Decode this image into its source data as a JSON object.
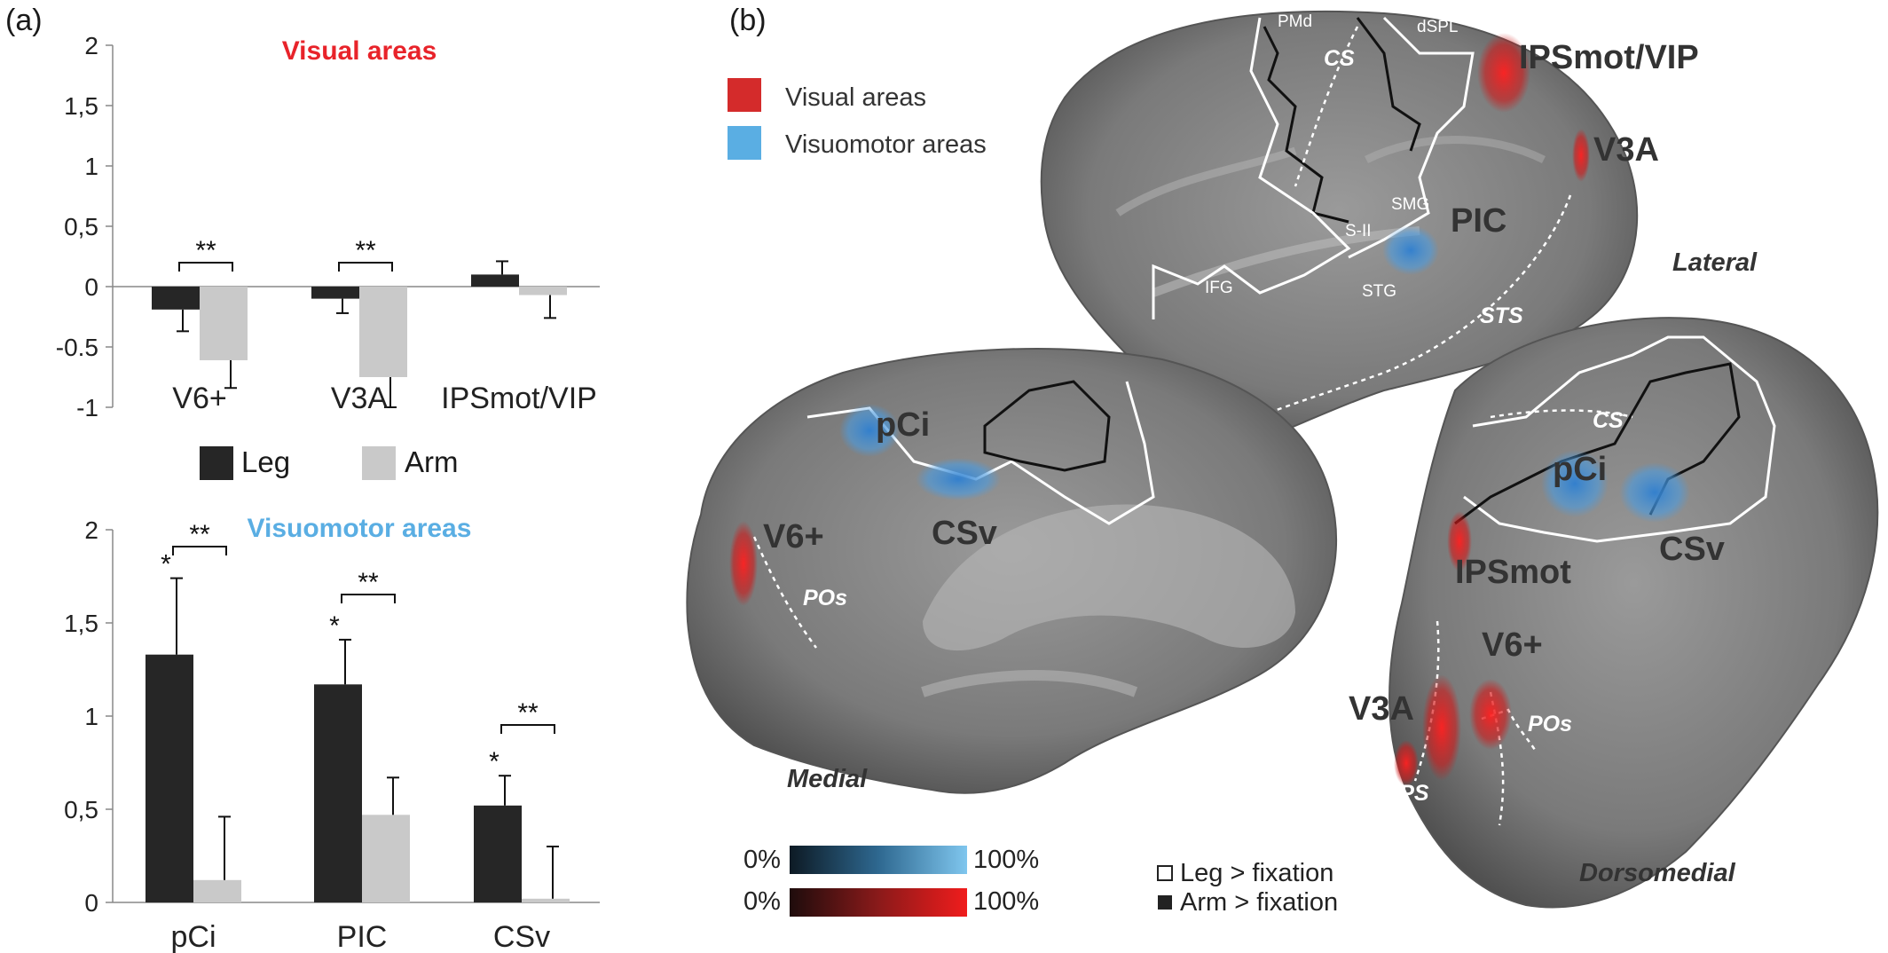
{
  "panel_a": {
    "label": "(a)",
    "legend": {
      "leg": "Leg",
      "arm": "Arm"
    },
    "colors": {
      "leg": "#262626",
      "arm": "#c9c9c9",
      "visual_title": "#e8232a",
      "visuomotor_title": "#5aaee3"
    }
  },
  "panel_b": {
    "label": "(b)",
    "legend": {
      "visual": "Visual areas",
      "visuomotor": "Visuomotor areas"
    },
    "colors": {
      "visual": "#d42b2b",
      "visuomotor": "#5aaee3"
    },
    "views": {
      "lateral": "Lateral",
      "medial": "Medial",
      "dorsomedial": "Dorsomedial"
    },
    "lateral_labels": {
      "pmd": "PMd",
      "dspl": "dSPL",
      "cs": "CS",
      "smg": "SMG",
      "s2": "S-II",
      "ifg": "IFG",
      "stg": "STG",
      "sts": "STS",
      "pic": "PIC",
      "ipsmot_vip": "IPSmot/VIP",
      "v3a": "V3A"
    },
    "medial_labels": {
      "pci": "pCi",
      "csv": "CSv",
      "v6": "V6+",
      "pos": "POs"
    },
    "dorsomedial_labels": {
      "cs": "CS",
      "pci": "pCi",
      "csv": "CSv",
      "ipsmot": "IPSmot",
      "v6": "V6+",
      "v3a": "V3A",
      "pos": "POs",
      "pips": "pIPS"
    },
    "colorbars": {
      "min": "0%",
      "max": "100%"
    },
    "outline_legend": {
      "leg": "Leg > fixation",
      "arm": "Arm > fixation"
    }
  },
  "chart_data": [
    {
      "type": "bar",
      "title": "Visual areas",
      "categories": [
        "V6+",
        "V3A",
        "IPSmot/VIP"
      ],
      "series": [
        {
          "name": "Leg",
          "values": [
            -0.19,
            -0.1,
            0.1
          ],
          "errors": [
            0.18,
            0.12,
            0.11
          ]
        },
        {
          "name": "Arm",
          "values": [
            -0.61,
            -0.75,
            -0.07
          ],
          "errors": [
            0.23,
            0.25,
            0.19
          ]
        }
      ],
      "ylim": [
        -1,
        2
      ],
      "yticks": [
        "-1",
        "-0.5",
        "0",
        "0,5",
        "1",
        "1,5",
        "2"
      ],
      "yticks_numeric": [
        -1,
        -0.5,
        0,
        0.5,
        1,
        1.5,
        2
      ],
      "annotations": [
        {
          "category": "V6+",
          "text": "**",
          "type": "bracket"
        },
        {
          "category": "V3A",
          "text": "**",
          "type": "bracket"
        }
      ]
    },
    {
      "type": "bar",
      "title": "Visuomotor areas",
      "categories": [
        "pCi",
        "PIC",
        "CSv"
      ],
      "series": [
        {
          "name": "Leg",
          "values": [
            1.33,
            1.17,
            0.52
          ],
          "errors": [
            0.41,
            0.24,
            0.16
          ]
        },
        {
          "name": "Arm",
          "values": [
            0.12,
            0.47,
            0.02
          ],
          "errors": [
            0.34,
            0.2,
            0.28
          ]
        }
      ],
      "ylim": [
        0,
        2
      ],
      "yticks": [
        "0",
        "0,5",
        "1",
        "1,5",
        "2"
      ],
      "yticks_numeric": [
        0,
        0.5,
        1,
        1.5,
        2
      ],
      "annotations": [
        {
          "category": "pCi",
          "text": "**",
          "type": "bracket"
        },
        {
          "category": "PIC",
          "text": "**",
          "type": "bracket"
        },
        {
          "category": "CSv",
          "text": "**",
          "type": "bracket"
        },
        {
          "category": "pCi",
          "text": "*",
          "type": "leg-star"
        },
        {
          "category": "PIC",
          "text": "*",
          "type": "leg-star"
        },
        {
          "category": "CSv",
          "text": "*",
          "type": "leg-star"
        }
      ]
    }
  ]
}
